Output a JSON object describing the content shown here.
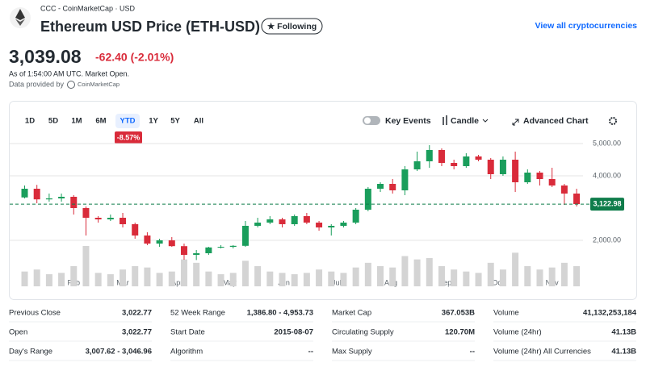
{
  "header": {
    "source": "CCC - CoinMarketCap · USD",
    "title": "Ethereum USD Price (ETH-USD)",
    "follow_button": "★ Following",
    "link": "View all cryptocurrencies"
  },
  "quote": {
    "price": "3,039.08",
    "change": "-62.40 (-2.01%)",
    "as_of": "As of 1:54:00 AM UTC. Market Open.",
    "provider_prefix": "Data provided by",
    "provider": "CoinMarketCap"
  },
  "controls": {
    "ranges": [
      "1D",
      "5D",
      "1M",
      "6M",
      "YTD",
      "1Y",
      "5Y",
      "All"
    ],
    "active": "YTD",
    "ytd_change": "-8.57%",
    "key_events": "Key Events",
    "chart_type": "Candle",
    "advanced": "Advanced Chart"
  },
  "chart_data": {
    "type": "candlestick",
    "x_labels": [
      "Feb",
      "Mar",
      "Apr",
      "May",
      "Jun",
      "Jul",
      "Aug",
      "Sep",
      "Oct",
      "Nov"
    ],
    "open": [
      3330,
      3600,
      3270,
      3300,
      3350,
      3000,
      2700,
      2650,
      2700,
      2500,
      2150,
      1900,
      2000,
      1820,
      1550,
      1600,
      1780,
      1800,
      1830,
      2450,
      2550,
      2650,
      2500,
      2750,
      2550,
      2400,
      2450,
      2550,
      2950,
      3600,
      3750,
      3550,
      4200,
      4450,
      4800,
      4400,
      4300,
      4600,
      4500,
      4050,
      4500,
      3800,
      4100,
      3900,
      3700,
      3450
    ],
    "high": [
      3700,
      3720,
      3450,
      3450,
      3400,
      3050,
      2750,
      2800,
      2850,
      2550,
      2250,
      2050,
      2100,
      1900,
      1700,
      1800,
      1850,
      1850,
      2600,
      2700,
      2750,
      2700,
      2800,
      2850,
      2600,
      2500,
      2600,
      3000,
      3650,
      3800,
      3900,
      4300,
      4750,
      4950,
      4850,
      4500,
      4700,
      4650,
      4550,
      4600,
      4750,
      4200,
      4150,
      4250,
      3750,
      3600
    ],
    "low": [
      3300,
      3150,
      3200,
      3200,
      2800,
      2150,
      2550,
      2600,
      2400,
      2050,
      1850,
      1800,
      1800,
      1400,
      1390,
      1550,
      1750,
      1750,
      1800,
      2400,
      2500,
      2400,
      2450,
      2500,
      2300,
      2150,
      2400,
      2500,
      2900,
      3500,
      3450,
      3400,
      4150,
      4250,
      4300,
      4200,
      4250,
      4450,
      3900,
      4000,
      3500,
      3750,
      3700,
      3650,
      3100,
      3050
    ],
    "close": [
      3600,
      3270,
      3300,
      3350,
      3000,
      2700,
      2650,
      2700,
      2500,
      2150,
      1900,
      2000,
      1820,
      1550,
      1600,
      1780,
      1800,
      1830,
      2450,
      2550,
      2650,
      2500,
      2750,
      2550,
      2400,
      2450,
      2550,
      2950,
      3600,
      3750,
      3550,
      4200,
      4450,
      4800,
      4400,
      4300,
      4600,
      4500,
      4050,
      4500,
      3800,
      4100,
      3900,
      3700,
      3450,
      3122.98
    ],
    "volume": [
      22,
      25,
      18,
      20,
      30,
      60,
      20,
      18,
      25,
      30,
      28,
      20,
      22,
      40,
      35,
      22,
      18,
      20,
      38,
      30,
      22,
      20,
      18,
      20,
      25,
      22,
      20,
      28,
      35,
      30,
      28,
      45,
      40,
      42,
      30,
      25,
      22,
      20,
      35,
      25,
      50,
      30,
      25,
      28,
      35,
      30
    ],
    "ylim": [
      800,
      5450
    ],
    "yticks": [
      {
        "value": 2000,
        "label": "2,000.00"
      },
      {
        "value": 4000,
        "label": "4,000.00"
      },
      {
        "value": 5000,
        "label": "5,000.00"
      }
    ],
    "grid": true,
    "up_color": "#1a9e5c",
    "down_color": "#d92b3a",
    "volume_color": "#d4d4d4",
    "last_price": {
      "value": 3122.98,
      "label": "3,122.98"
    },
    "last_price_color": "#0e7c4a"
  },
  "stats": [
    {
      "label": "Previous Close",
      "value": "3,022.77"
    },
    {
      "label": "Open",
      "value": "3,022.77"
    },
    {
      "label": "Day's Range",
      "value": "3,007.62 - 3,046.96"
    },
    {
      "label": "52 Week Range",
      "value": "1,386.80 - 4,953.73"
    },
    {
      "label": "Start Date",
      "value": "2015-08-07"
    },
    {
      "label": "Algorithm",
      "value": "--"
    },
    {
      "label": "Market Cap",
      "value": "367.053B"
    },
    {
      "label": "Circulating Supply",
      "value": "120.70M"
    },
    {
      "label": "Max Supply",
      "value": "--"
    },
    {
      "label": "Volume",
      "value": "41,132,253,184"
    },
    {
      "label": "Volume (24hr)",
      "value": "41.13B"
    },
    {
      "label": "Volume (24hr) All Currencies",
      "value": "41.13B"
    }
  ]
}
